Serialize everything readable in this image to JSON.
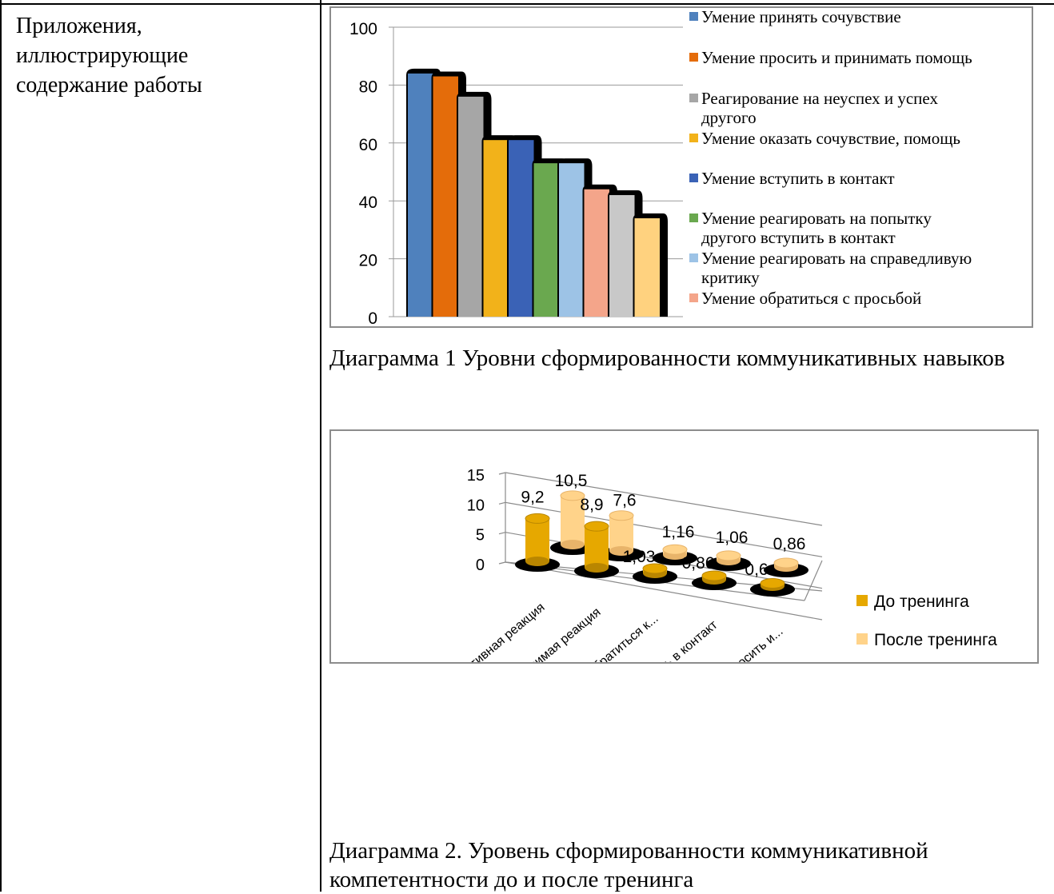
{
  "left_cell_text": "Приложения, иллюстрирующие содержание работы",
  "caption1": "Диаграмма 1 Уровни сформированности коммуникативных навыков",
  "caption2": "Диаграмма 2. Уровень сформированности коммуникативной компетентности до и после тренинга",
  "chart_data": [
    {
      "type": "bar",
      "title": "",
      "ylim": [
        0,
        100
      ],
      "yticks": [
        0,
        20,
        40,
        60,
        80,
        100
      ],
      "legend_position": "right",
      "series": [
        {
          "name": "Умение принять сочувствие",
          "value": 84,
          "color": "#4f81bd"
        },
        {
          "name": "Умение просить и принимать помощь",
          "value": 83,
          "color": "#e46c0a"
        },
        {
          "name": "Реагирование на неуспех и успех другого",
          "value": 76,
          "color": "#a6a6a6"
        },
        {
          "name": "Умение оказать сочувствие, помощь",
          "value": 61,
          "color": "#f2b21a"
        },
        {
          "name": "Умение вступить в контакт",
          "value": 61,
          "color": "#3a62b6"
        },
        {
          "name": "Умение реагировать на попытку другого вступить в контакт",
          "value": 53,
          "color": "#6aa84f"
        },
        {
          "name": "Умение реагировать на справедливую критику",
          "value": 53,
          "color": "#9dc3e6"
        },
        {
          "name": "Умение обратиться с просьбой",
          "value": 44,
          "color": "#f4a58a"
        },
        {
          "name": "",
          "value": 42,
          "color": "#c8c8c8"
        },
        {
          "name": "",
          "value": 34,
          "color": "#ffd27f"
        }
      ]
    },
    {
      "type": "bar",
      "title": "",
      "ylim": [
        0,
        15
      ],
      "yticks": [
        0,
        5,
        10,
        15
      ],
      "legend_position": "right",
      "categories": [
        "Коммуникативная реакция",
        "Зависимая реакция",
        "Умение обратиться к...",
        "Умение вступить в контакт",
        "Умение просить и..."
      ],
      "series": [
        {
          "name": "До тренинга",
          "color": "#e6a800",
          "values": [
            9.2,
            8.9,
            1.03,
            0.86,
            0.6
          ],
          "labels": [
            "9,2",
            "8,9",
            "1,03",
            "0,86",
            "0,6"
          ]
        },
        {
          "name": "После тренинга",
          "color": "#ffd38a",
          "values": [
            10.5,
            7.6,
            1.16,
            1.06,
            0.86
          ],
          "labels": [
            "10,5",
            "7,6",
            "1,16",
            "1,06",
            "0,86"
          ]
        }
      ]
    }
  ]
}
